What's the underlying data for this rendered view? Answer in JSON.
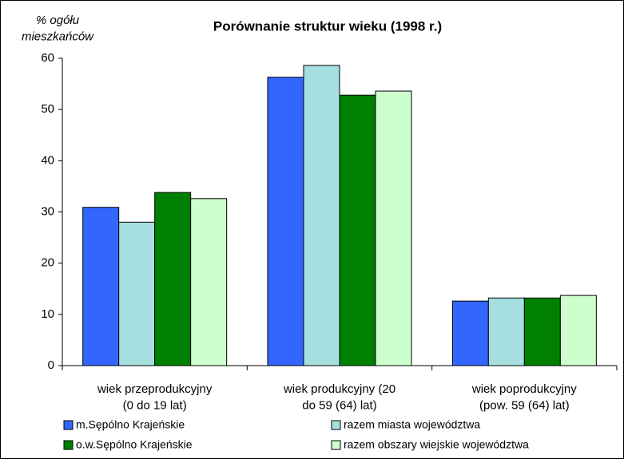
{
  "chart_data": {
    "type": "bar",
    "title": "Porównanie struktur wieku (1998 r.)",
    "y_label": "% ogółu\nmieszkańców",
    "categories": [
      "wiek przeprodukcyjny\n(0 do 19 lat)",
      "wiek produkcyjny (20\ndo 59 (64) lat)",
      "wiek poprodukcyjny\n(pow. 59 (64) lat)"
    ],
    "series": [
      {
        "name": "m.Sępólno Krajeńskie",
        "color": "#3366ff",
        "values": [
          30.9,
          56.3,
          12.6
        ]
      },
      {
        "name": "razem miasta województwa",
        "color": "#a6dfdf",
        "values": [
          28.0,
          58.6,
          13.2
        ]
      },
      {
        "name": "o.w.Sępólno Krajeńskie",
        "color": "#008000",
        "values": [
          33.8,
          52.8,
          13.2
        ]
      },
      {
        "name": "razem obszary wiejskie województwa",
        "color": "#ccffcc",
        "values": [
          32.6,
          53.6,
          13.7
        ]
      }
    ],
    "ylim": [
      0,
      60
    ],
    "yticks": [
      0,
      10,
      20,
      30,
      40,
      50,
      60
    ],
    "grid": false,
    "legend": "bottom"
  }
}
